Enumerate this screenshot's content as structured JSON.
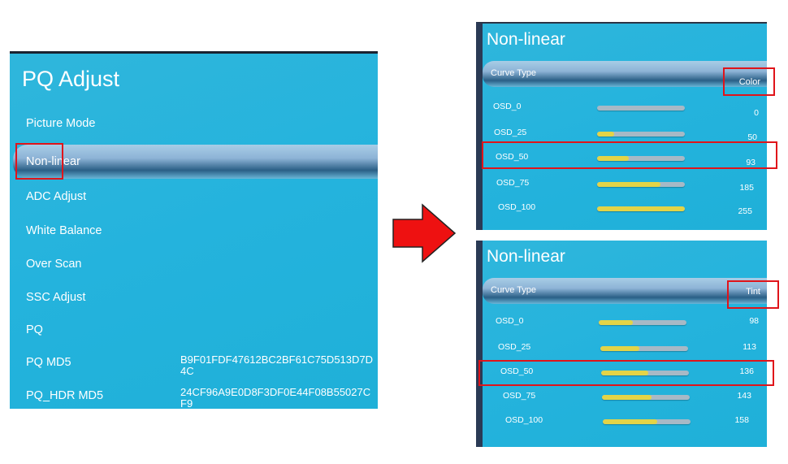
{
  "pq_adjust": {
    "title": "PQ Adjust",
    "items": [
      {
        "label": "Picture Mode"
      },
      {
        "label": "Non-linear",
        "selected": true
      },
      {
        "label": "ADC Adjust"
      },
      {
        "label": "White Balance"
      },
      {
        "label": "Over Scan"
      },
      {
        "label": "SSC Adjust"
      },
      {
        "label": "PQ"
      },
      {
        "label": "PQ MD5",
        "value": "B9F01FDF47612BC2BF61C75D513D7D4C"
      },
      {
        "label": "PQ_HDR MD5",
        "value": "24CF96A9E0D8F3DF0E44F08B55027CF9"
      }
    ]
  },
  "arrow_icon": "right-arrow-icon",
  "colors": {
    "background": "#24b3dd",
    "highlight_box": "#e0141a",
    "slider_fill": "#e3d447",
    "slider_track": "#a7b9c6",
    "arrow": "#ee1111"
  },
  "panels": [
    {
      "title": "Non-linear",
      "curve_type_label": "Curve Type",
      "curve_type_value": "Color",
      "slider_max": 255,
      "rows": [
        {
          "label": "OSD_0",
          "value": "0"
        },
        {
          "label": "OSD_25",
          "value": "50"
        },
        {
          "label": "OSD_50",
          "value": "93"
        },
        {
          "label": "OSD_75",
          "value": "185"
        },
        {
          "label": "OSD_100",
          "value": "255"
        }
      ]
    },
    {
      "title": "Non-linear",
      "curve_type_label": "Curve Type",
      "curve_type_value": "Tint",
      "slider_max": 255,
      "rows": [
        {
          "label": "OSD_0",
          "value": "98"
        },
        {
          "label": "OSD_25",
          "value": "113"
        },
        {
          "label": "OSD_50",
          "value": "136"
        },
        {
          "label": "OSD_75",
          "value": "143"
        },
        {
          "label": "OSD_100",
          "value": "158"
        }
      ]
    }
  ]
}
